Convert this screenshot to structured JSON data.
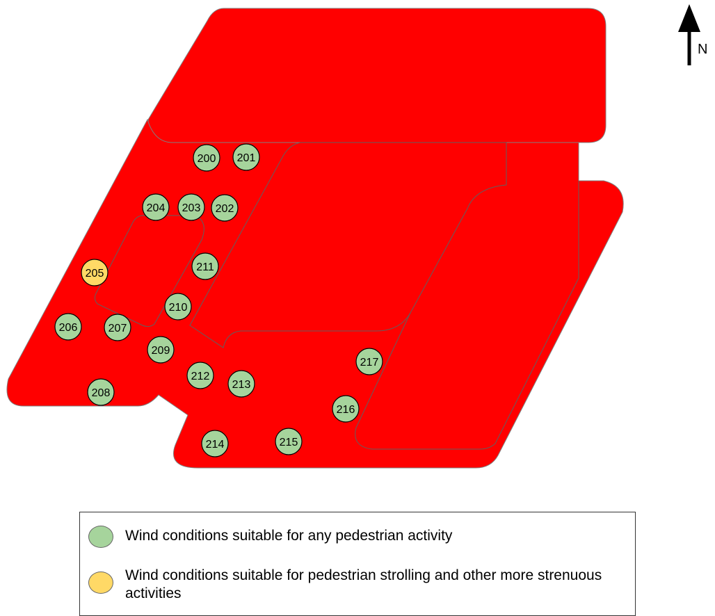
{
  "colors": {
    "site": "#ff0000",
    "site_outline": "#808080",
    "suitable_any": "#a6d49c",
    "suitable_strolling": "#ffd966",
    "marker_stroke": "#000000"
  },
  "markers": [
    {
      "id": "200",
      "category": "suitable_any"
    },
    {
      "id": "201",
      "category": "suitable_any"
    },
    {
      "id": "202",
      "category": "suitable_any"
    },
    {
      "id": "203",
      "category": "suitable_any"
    },
    {
      "id": "204",
      "category": "suitable_any"
    },
    {
      "id": "205",
      "category": "suitable_strolling"
    },
    {
      "id": "206",
      "category": "suitable_any"
    },
    {
      "id": "207",
      "category": "suitable_any"
    },
    {
      "id": "208",
      "category": "suitable_any"
    },
    {
      "id": "209",
      "category": "suitable_any"
    },
    {
      "id": "210",
      "category": "suitable_any"
    },
    {
      "id": "211",
      "category": "suitable_any"
    },
    {
      "id": "212",
      "category": "suitable_any"
    },
    {
      "id": "213",
      "category": "suitable_any"
    },
    {
      "id": "214",
      "category": "suitable_any"
    },
    {
      "id": "215",
      "category": "suitable_any"
    },
    {
      "id": "216",
      "category": "suitable_any"
    },
    {
      "id": "217",
      "category": "suitable_any"
    }
  ],
  "north_arrow": {
    "label": "N"
  },
  "legend": {
    "items": [
      {
        "category": "suitable_any",
        "label": "Wind conditions suitable for any pedestrian activity"
      },
      {
        "category": "suitable_strolling",
        "label": "Wind conditions suitable for pedestrian strolling and other more strenuous activities"
      }
    ]
  }
}
